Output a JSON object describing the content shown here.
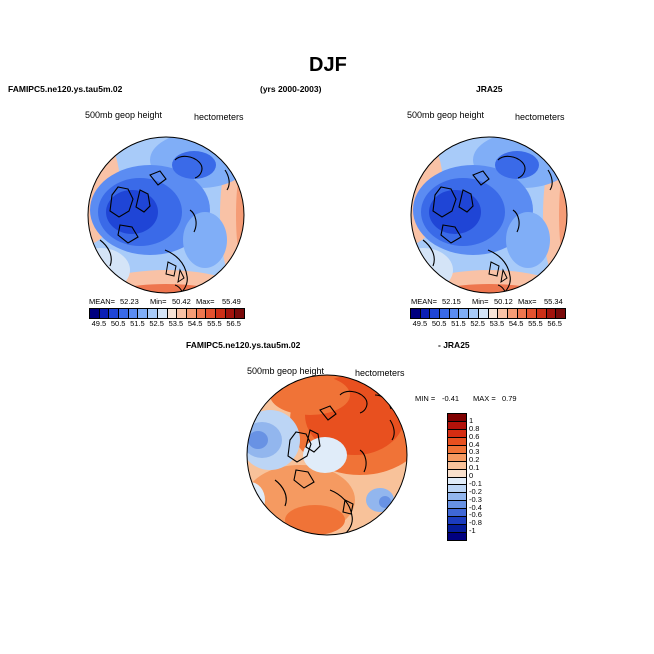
{
  "title": "DJF",
  "period": "(yrs 2000-2003)",
  "top_left": {
    "case": "FAMIPC5.ne120.ys.tau5m.02",
    "variable": "500mb geop height",
    "units": "hectometers",
    "mean_label": "MEAN=",
    "mean": "52.23",
    "min_label": "Min=",
    "min": "50.42",
    "max_label": "Max=",
    "max": "55.49"
  },
  "top_right": {
    "case": "JRA25",
    "variable": "500mb geop height",
    "units": "hectometers",
    "mean_label": "MEAN=",
    "mean": "52.15",
    "min_label": "Min=",
    "min": "50.12",
    "max_label": "Max=",
    "max": "55.34"
  },
  "bottom": {
    "case_a": "FAMIPC5.ne120.ys.tau5m.02",
    "case_b": "- JRA25",
    "variable": "500mb geop height",
    "units": "hectometers",
    "min_label": "MIN =",
    "min": "-0.41",
    "max_label": "MAX =",
    "max": "0.79"
  },
  "colorbar_levels": [
    "49.5",
    "50.5",
    "51.5",
    "52.5",
    "53.5",
    "54.5",
    "55.5",
    "56.5"
  ],
  "colorbar_colors": [
    "#00007f",
    "#0b1fb5",
    "#1f45d6",
    "#3a6ae8",
    "#5b8cf2",
    "#80aef7",
    "#a8cbf9",
    "#d4e4f7",
    "#f7e3d6",
    "#f9c2a6",
    "#f59c76",
    "#ee764f",
    "#e35230",
    "#cc2f17",
    "#a2130c",
    "#7a0a0a"
  ],
  "diff_levels": [
    "1",
    "0.8",
    "0.6",
    "0.4",
    "0.3",
    "0.2",
    "0.1",
    "0",
    "-0.1",
    "-0.2",
    "-0.3",
    "-0.4",
    "-0.6",
    "-0.8",
    "-1"
  ],
  "diff_colors": [
    "#7f0000",
    "#b3120a",
    "#d62d12",
    "#e8501f",
    "#f07337",
    "#f59a61",
    "#f8c29a",
    "#f9e0cc",
    "#e0ecf9",
    "#bcd5f5",
    "#92b6ee",
    "#6892e4",
    "#3f67d6",
    "#1b3cbf",
    "#051c9a",
    "#00007f"
  ]
}
